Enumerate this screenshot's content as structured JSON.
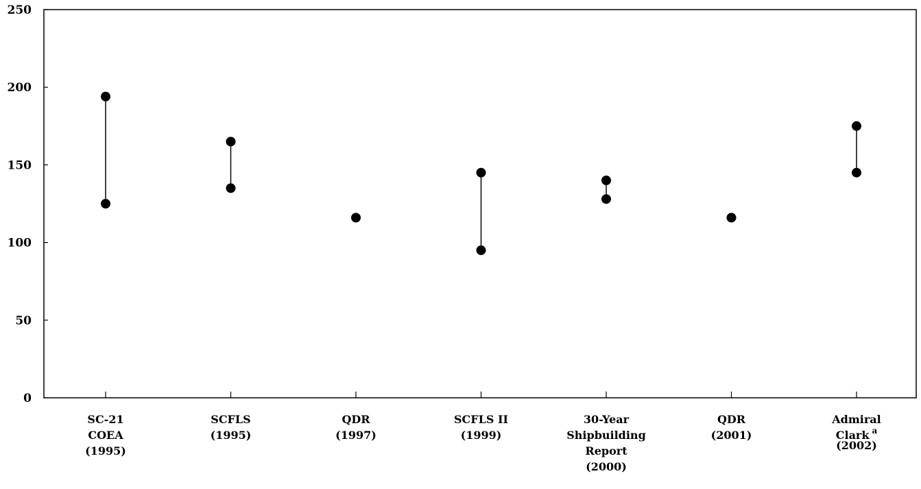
{
  "chart_data": {
    "type": "scatter",
    "title": "",
    "xlabel": "",
    "ylabel": "",
    "ylim": [
      0,
      250
    ],
    "yticks": [
      "0",
      "50",
      "100",
      "150",
      "200",
      "250"
    ],
    "grid": false,
    "legend": "none",
    "categories": [
      {
        "lines": [
          "SC-21",
          "COEA",
          "(1995)"
        ],
        "sup": ""
      },
      {
        "lines": [
          "SCFLS",
          "(1995)"
        ],
        "sup": ""
      },
      {
        "lines": [
          "QDR",
          "(1997)"
        ],
        "sup": ""
      },
      {
        "lines": [
          "SCFLS II",
          "(1999)"
        ],
        "sup": ""
      },
      {
        "lines": [
          "30-Year",
          "Shipbuilding",
          "Report",
          "(2000)"
        ],
        "sup": ""
      },
      {
        "lines": [
          "QDR",
          "(2001)"
        ],
        "sup": ""
      },
      {
        "lines": [
          "Admiral",
          "Clark",
          "(2002)"
        ],
        "sup": "a"
      }
    ],
    "ranges": [
      {
        "low": 125,
        "high": 194
      },
      {
        "low": 135,
        "high": 165
      },
      {
        "low": 116,
        "high": 116
      },
      {
        "low": 95,
        "high": 145
      },
      {
        "low": 128,
        "high": 140
      },
      {
        "low": 116,
        "high": 116
      },
      {
        "low": 145,
        "high": 175
      }
    ],
    "colors": {
      "marker": "#000000",
      "axis": "#000000"
    }
  }
}
